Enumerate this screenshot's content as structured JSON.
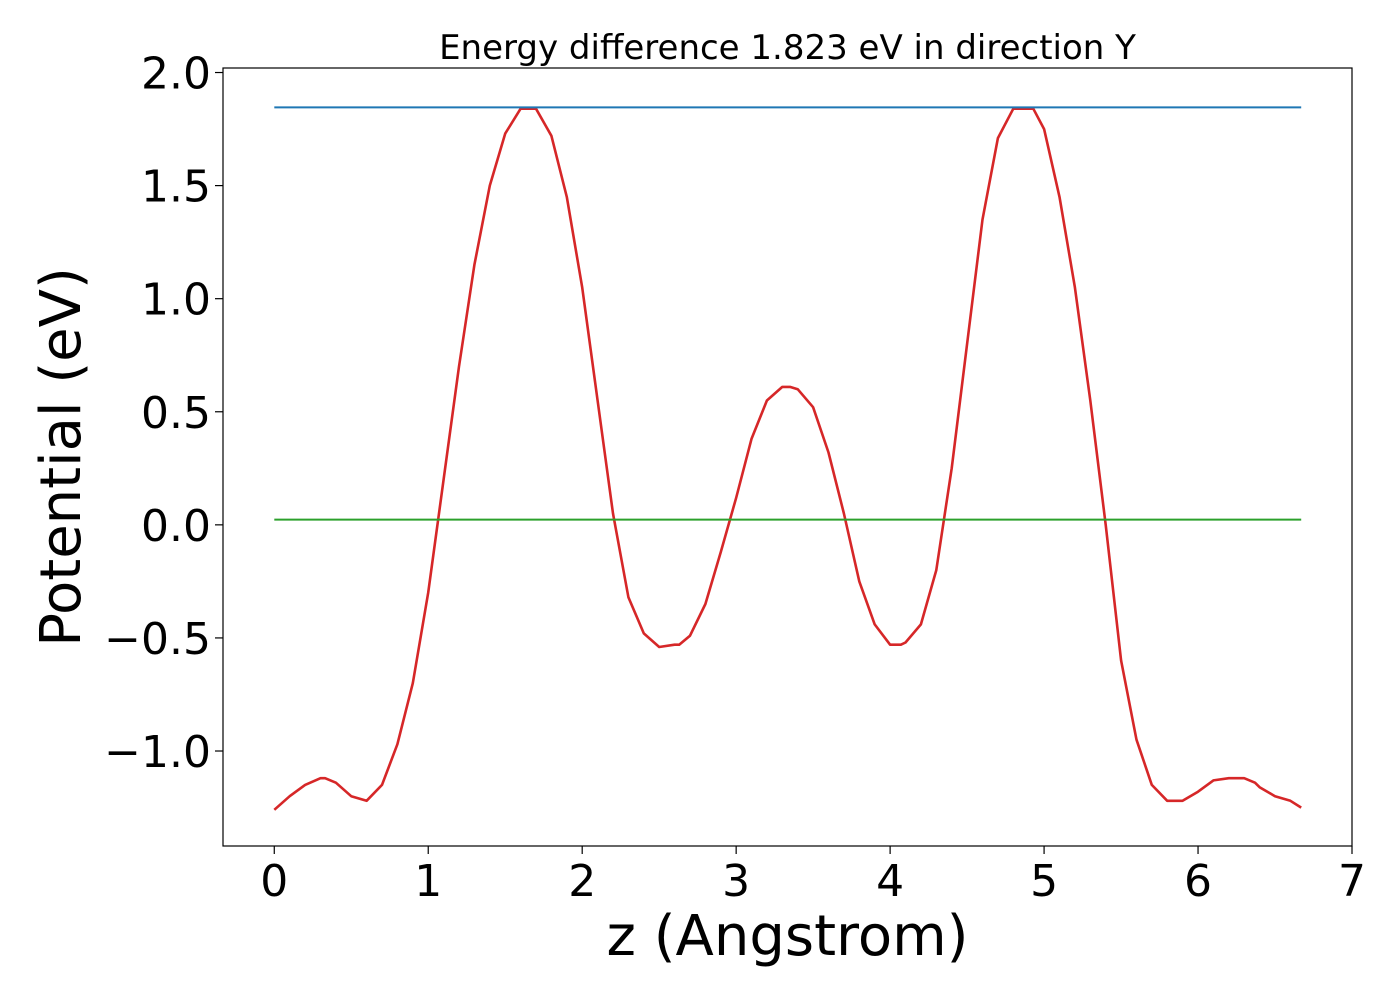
{
  "chart_data": {
    "type": "line",
    "title": "Energy difference 1.823 eV in direction Y",
    "xlabel": "z (Angstrom)",
    "ylabel": "Potential (eV)",
    "xlim": [
      -0.333,
      7.0
    ],
    "ylim": [
      -1.42,
      2.02
    ],
    "xticks": [
      0,
      1,
      2,
      3,
      4,
      5,
      6,
      7
    ],
    "yticks": [
      -1.0,
      -0.5,
      0.0,
      0.5,
      1.0,
      1.5,
      2.0
    ],
    "ytick_labels": [
      "−1.0",
      "−0.5",
      "0.0",
      "0.5",
      "1.0",
      "1.5",
      "2.0"
    ],
    "grid": false,
    "series": [
      {
        "color": "#d62728",
        "x": [
          0.0,
          0.1,
          0.2,
          0.3,
          0.33,
          0.4,
          0.5,
          0.6,
          0.7,
          0.8,
          0.9,
          1.0,
          1.1,
          1.2,
          1.3,
          1.4,
          1.5,
          1.6,
          1.7,
          1.8,
          1.9,
          2.0,
          2.1,
          2.2,
          2.3,
          2.4,
          2.5,
          2.6,
          2.63,
          2.7,
          2.8,
          2.9,
          3.0,
          3.1,
          3.2,
          3.3,
          3.35,
          3.4,
          3.5,
          3.6,
          3.7,
          3.8,
          3.9,
          4.0,
          4.07,
          4.1,
          4.2,
          4.3,
          4.4,
          4.5,
          4.6,
          4.7,
          4.8,
          4.9,
          4.93,
          5.0,
          5.1,
          5.2,
          5.3,
          5.4,
          5.5,
          5.6,
          5.7,
          5.8,
          5.9,
          6.0,
          6.1,
          6.2,
          6.3,
          6.37,
          6.4,
          6.5,
          6.6,
          6.67
        ],
        "y": [
          -1.26,
          -1.2,
          -1.15,
          -1.12,
          -1.12,
          -1.14,
          -1.2,
          -1.22,
          -1.15,
          -0.97,
          -0.7,
          -0.3,
          0.2,
          0.7,
          1.15,
          1.5,
          1.73,
          1.84,
          1.84,
          1.72,
          1.45,
          1.05,
          0.55,
          0.05,
          -0.32,
          -0.48,
          -0.54,
          -0.53,
          -0.53,
          -0.49,
          -0.35,
          -0.12,
          0.12,
          0.38,
          0.55,
          0.61,
          0.61,
          0.6,
          0.52,
          0.32,
          0.05,
          -0.25,
          -0.44,
          -0.53,
          -0.53,
          -0.52,
          -0.44,
          -0.2,
          0.25,
          0.8,
          1.35,
          1.71,
          1.84,
          1.84,
          1.84,
          1.75,
          1.45,
          1.05,
          0.55,
          0.0,
          -0.6,
          -0.95,
          -1.15,
          -1.22,
          -1.22,
          -1.18,
          -1.13,
          -1.12,
          -1.12,
          -1.14,
          -1.16,
          -1.2,
          -1.22,
          -1.25
        ]
      },
      {
        "color": "#1f77b4",
        "x": [
          0.0,
          6.67
        ],
        "y": [
          1.846,
          1.846
        ]
      },
      {
        "color": "#2ca02c",
        "x": [
          0.0,
          6.67
        ],
        "y": [
          0.023,
          0.023
        ]
      }
    ]
  }
}
